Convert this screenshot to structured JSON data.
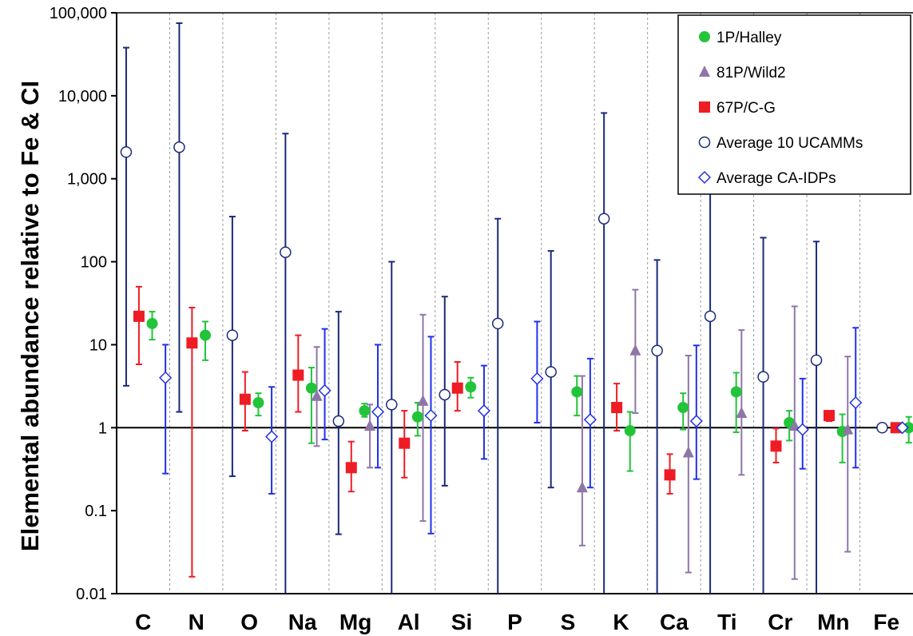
{
  "chart_data": {
    "type": "scatter",
    "ylabel": "Elemental abundance relative to Fe & CI",
    "yscale": "log",
    "ylim": [
      0.01,
      100000
    ],
    "yticks": [
      "0.01",
      "0.1",
      "1",
      "10",
      "100",
      "1,000",
      "10,000",
      "100,000"
    ],
    "categories": [
      "C",
      "N",
      "O",
      "Na",
      "Mg",
      "Al",
      "Si",
      "P",
      "S",
      "K",
      "Ca",
      "Ti",
      "Cr",
      "Mn",
      "Fe"
    ],
    "reference_line": 1,
    "legend_position": "top-right",
    "series": [
      {
        "name": "1P/Halley",
        "marker": "circle-filled",
        "color": "#22c43a",
        "points": [
          {
            "category": "C",
            "value": 18,
            "low": 11.5,
            "high": 25
          },
          {
            "category": "N",
            "value": 13,
            "low": 6.5,
            "high": 19
          },
          {
            "category": "O",
            "value": 2.0,
            "low": 1.4,
            "high": 2.6
          },
          {
            "category": "Na",
            "value": 3.0,
            "low": 0.65,
            "high": 5.3
          },
          {
            "category": "Mg",
            "value": 1.6,
            "low": 1.35,
            "high": 1.95
          },
          {
            "category": "Al",
            "value": 1.35,
            "low": 0.8,
            "high": 2.0
          },
          {
            "category": "Si",
            "value": 3.1,
            "low": 2.3,
            "high": 4.0
          },
          {
            "category": "S",
            "value": 2.7,
            "low": 1.4,
            "high": 4.2
          },
          {
            "category": "K",
            "value": 0.92,
            "low": 0.3,
            "high": 1.55
          },
          {
            "category": "Ca",
            "value": 1.75,
            "low": 0.95,
            "high": 2.6
          },
          {
            "category": "Ti",
            "value": 2.7,
            "low": 0.88,
            "high": 4.6
          },
          {
            "category": "Cr",
            "value": 1.15,
            "low": 0.7,
            "high": 1.6
          },
          {
            "category": "Mn",
            "value": 0.9,
            "low": 0.38,
            "high": 1.45
          },
          {
            "category": "Fe",
            "value": 1.0,
            "low": 0.66,
            "high": 1.35
          }
        ]
      },
      {
        "name": "81P/Wild2",
        "marker": "triangle",
        "color": "#8e76a8",
        "points": [
          {
            "category": "Na",
            "value": 2.4,
            "low": 0.6,
            "high": 9.4
          },
          {
            "category": "Mg",
            "value": 1.05,
            "low": 0.33,
            "high": 1.9
          },
          {
            "category": "Al",
            "value": 2.1,
            "low": 0.075,
            "high": 23
          },
          {
            "category": "S",
            "value": 0.19,
            "low": 0.038,
            "high": 4.2
          },
          {
            "category": "K",
            "value": 8.5,
            "low": 1.5,
            "high": 46
          },
          {
            "category": "Ca",
            "value": 0.5,
            "low": 0.018,
            "high": 7.4
          },
          {
            "category": "Ti",
            "value": 1.5,
            "low": 0.27,
            "high": 15
          },
          {
            "category": "Cr",
            "value": 1.05,
            "low": 0.015,
            "high": 29
          },
          {
            "category": "Mn",
            "value": 0.95,
            "low": 0.032,
            "high": 7.2
          }
        ]
      },
      {
        "name": "67P/C-G",
        "marker": "square",
        "color": "#ee1c24",
        "points": [
          {
            "category": "C",
            "value": 22,
            "low": 5.8,
            "high": 50
          },
          {
            "category": "N",
            "value": 10.5,
            "low": 0.016,
            "high": 28
          },
          {
            "category": "O",
            "value": 2.2,
            "low": 0.92,
            "high": 4.7
          },
          {
            "category": "Na",
            "value": 4.3,
            "low": 1.55,
            "high": 13
          },
          {
            "category": "Mg",
            "value": 0.33,
            "low": 0.17,
            "high": 0.68
          },
          {
            "category": "Al",
            "value": 0.65,
            "low": 0.25,
            "high": 1.6
          },
          {
            "category": "Si",
            "value": 3.0,
            "low": 1.6,
            "high": 6.2
          },
          {
            "category": "K",
            "value": 1.75,
            "low": 0.92,
            "high": 3.4
          },
          {
            "category": "Ca",
            "value": 0.27,
            "low": 0.16,
            "high": 0.48
          },
          {
            "category": "Cr",
            "value": 0.6,
            "low": 0.38,
            "high": 0.98
          },
          {
            "category": "Mn",
            "value": 1.4,
            "low": 1.2,
            "high": 1.6
          },
          {
            "category": "Fe",
            "value": 1.0,
            "low": 1.0,
            "high": 1.0
          }
        ]
      },
      {
        "name": "Average 10 UCAMMs",
        "marker": "circle-open",
        "color": "#1b2a78",
        "points": [
          {
            "category": "C",
            "value": 2100,
            "low": 3.2,
            "high": 38000
          },
          {
            "category": "N",
            "value": 2400,
            "low": 1.55,
            "high": 75000
          },
          {
            "category": "O",
            "value": 13,
            "low": 0.26,
            "high": 350
          },
          {
            "category": "Na",
            "value": 130,
            "low": 0.01,
            "high": 3500
          },
          {
            "category": "Mg",
            "value": 1.2,
            "low": 0.052,
            "high": 25
          },
          {
            "category": "Al",
            "value": 1.9,
            "low": 0.01,
            "high": 100
          },
          {
            "category": "Si",
            "value": 2.5,
            "low": 0.2,
            "high": 38
          },
          {
            "category": "P",
            "value": 18,
            "low": 0.01,
            "high": 330
          },
          {
            "category": "S",
            "value": 4.7,
            "low": 0.19,
            "high": 135
          },
          {
            "category": "K",
            "value": 330,
            "low": 0.01,
            "high": 6200
          },
          {
            "category": "Ca",
            "value": 8.5,
            "low": 0.01,
            "high": 105
          },
          {
            "category": "Ti",
            "value": 22,
            "low": 0.01,
            "high": 900
          },
          {
            "category": "Cr",
            "value": 4.1,
            "low": 0.01,
            "high": 195
          },
          {
            "category": "Mn",
            "value": 6.5,
            "low": 0.01,
            "high": 175
          },
          {
            "category": "Fe",
            "value": 1.0,
            "low": 1.0,
            "high": 1.0
          }
        ]
      },
      {
        "name": "Average CA-IDPs",
        "marker": "diamond-open",
        "color": "#2230e8",
        "points": [
          {
            "category": "C",
            "value": 4.0,
            "low": 0.28,
            "high": 10
          },
          {
            "category": "O",
            "value": 0.78,
            "low": 0.16,
            "high": 3.1
          },
          {
            "category": "Na",
            "value": 2.8,
            "low": 0.72,
            "high": 15.5
          },
          {
            "category": "Mg",
            "value": 1.55,
            "low": 0.33,
            "high": 10
          },
          {
            "category": "Al",
            "value": 1.4,
            "low": 0.053,
            "high": 12.5
          },
          {
            "category": "Si",
            "value": 1.6,
            "low": 0.42,
            "high": 5.6
          },
          {
            "category": "P",
            "value": 3.9,
            "low": 1.15,
            "high": 19
          },
          {
            "category": "S",
            "value": 1.25,
            "low": 0.19,
            "high": 6.8
          },
          {
            "category": "Ca",
            "value": 1.2,
            "low": 0.24,
            "high": 9.8
          },
          {
            "category": "Cr",
            "value": 0.95,
            "low": 0.32,
            "high": 3.9
          },
          {
            "category": "Mn",
            "value": 2.0,
            "low": 0.33,
            "high": 16
          },
          {
            "category": "Fe",
            "value": 1.0,
            "low": 1.0,
            "high": 1.0
          }
        ]
      }
    ]
  }
}
